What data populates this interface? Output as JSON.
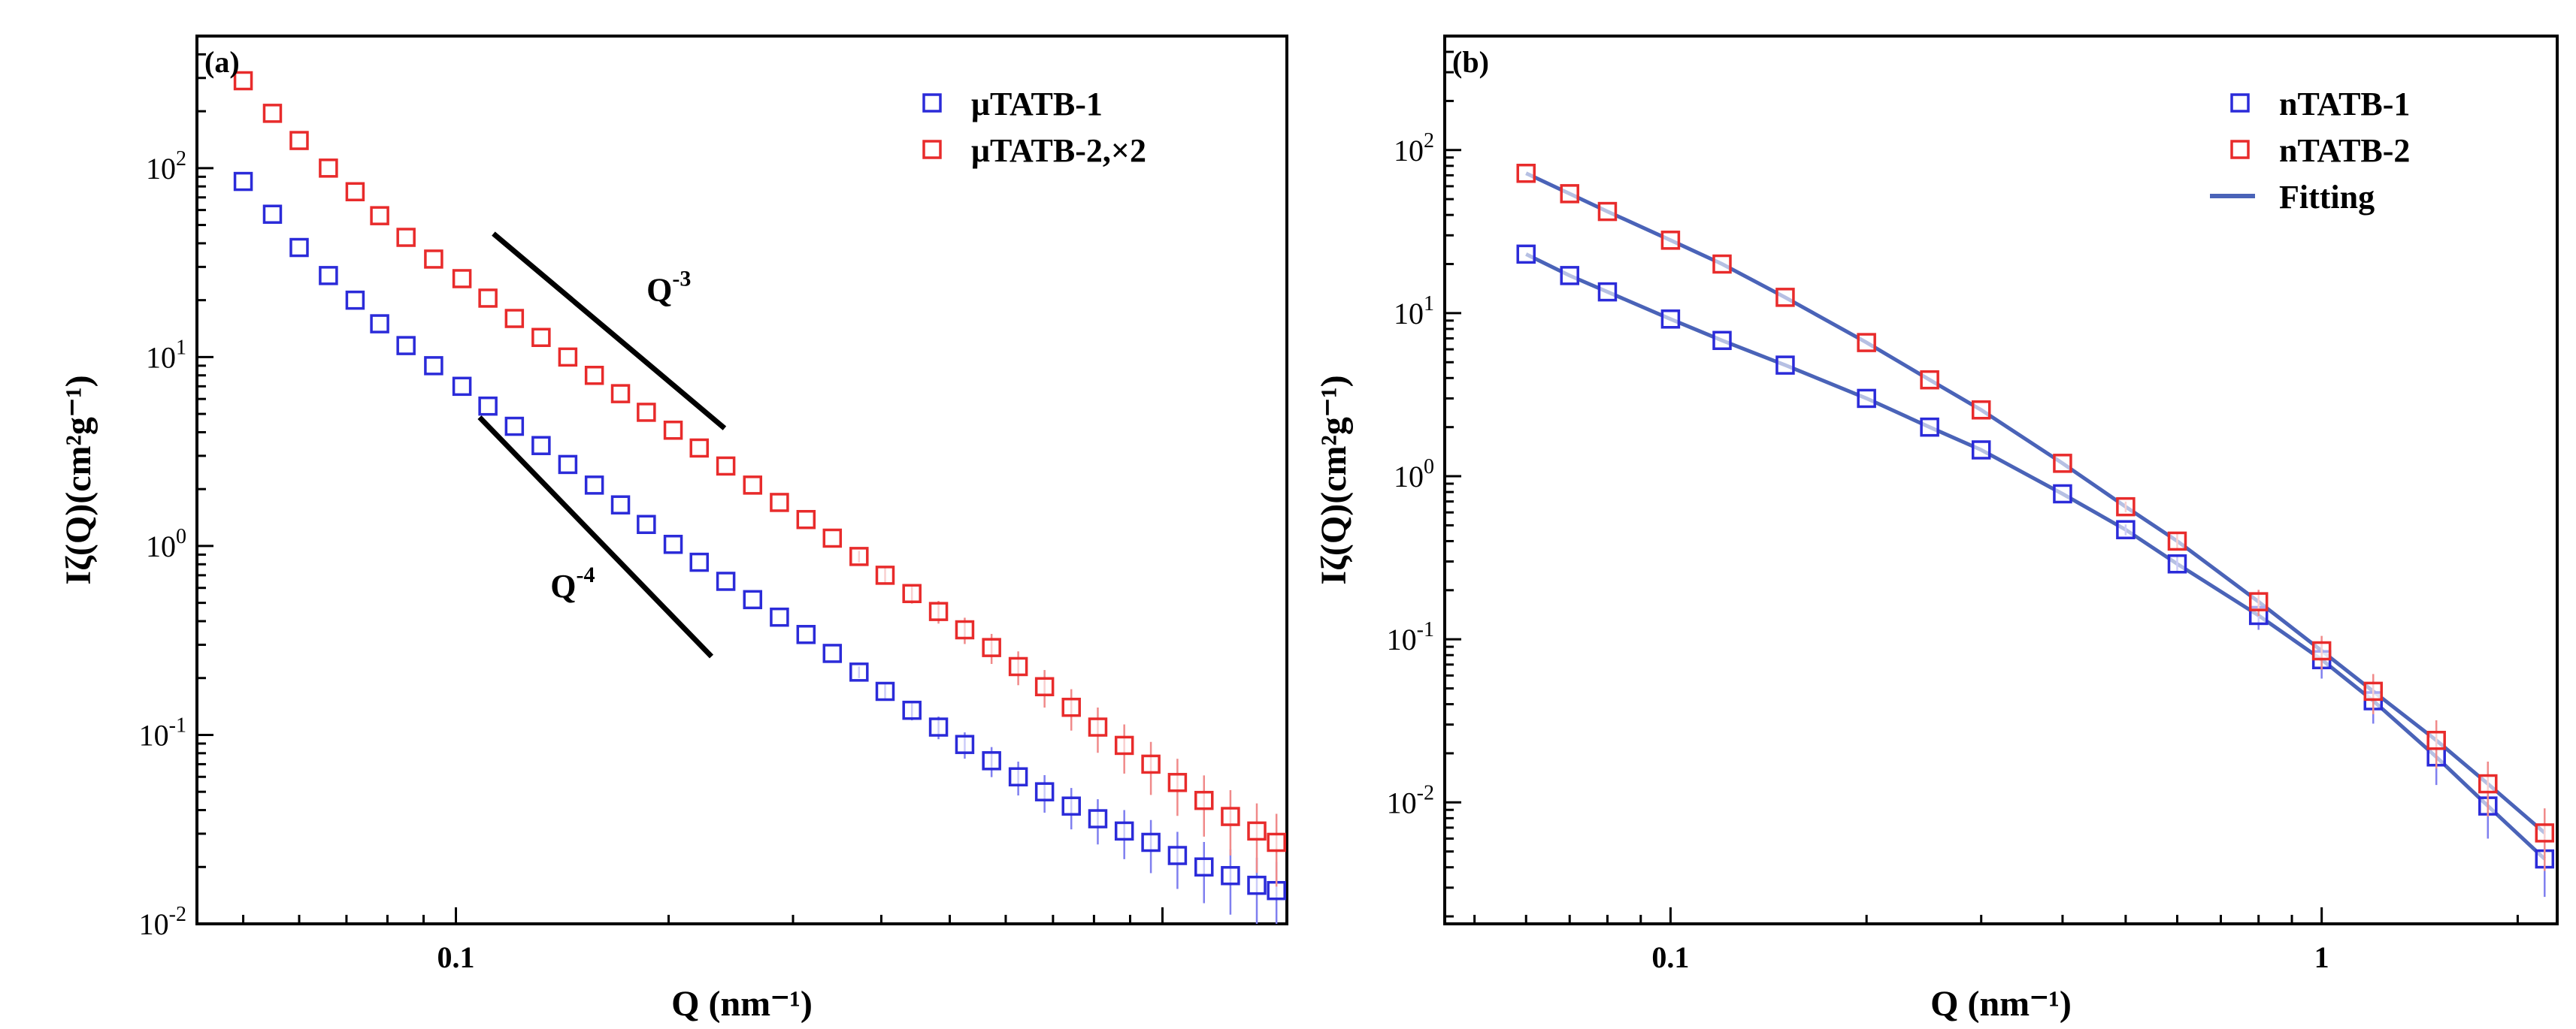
{
  "colors": {
    "blue": "#2b2bd9",
    "red": "#e82b2b",
    "fit": "#4a63b8",
    "errorBlue": "#7f7fef",
    "errorRed": "#f08a8a"
  },
  "chart_data": [
    {
      "type": "scatter",
      "panel_label": "(a)",
      "xscale": "log",
      "yscale": "log",
      "xlim": [
        0.043,
        1.5
      ],
      "ylim": [
        0.01,
        500
      ],
      "xlabel": "Q (nm⁻¹)",
      "ylabel": "Iζ(Q)(cm²g⁻¹)",
      "x_ticks": [
        {
          "value": 0.1,
          "label": "0.1"
        }
      ],
      "y_ticks": [
        {
          "value": 0.01,
          "base": "10",
          "exp": "-2"
        },
        {
          "value": 0.1,
          "base": "10",
          "exp": "-1"
        },
        {
          "value": 1,
          "base": "10",
          "exp": "0"
        },
        {
          "value": 10,
          "base": "10",
          "exp": "1"
        },
        {
          "value": 100,
          "base": "10",
          "exp": "2"
        }
      ],
      "legend_position": "top-right",
      "series": [
        {
          "name": "μTATB-1",
          "color": "blue",
          "x": [
            0.05,
            0.055,
            0.06,
            0.066,
            0.072,
            0.078,
            0.085,
            0.093,
            0.102,
            0.111,
            0.121,
            0.132,
            0.144,
            0.157,
            0.171,
            0.186,
            0.203,
            0.221,
            0.241,
            0.263,
            0.287,
            0.313,
            0.341,
            0.372,
            0.405,
            0.442,
            0.482,
            0.525,
            0.573,
            0.625,
            0.681,
            0.743,
            0.81,
            0.883,
            0.963,
            1.05,
            1.145,
            1.248,
            1.36,
            1.45
          ],
          "y": [
            85,
            57,
            38,
            27,
            20,
            15,
            11.5,
            9,
            7,
            5.5,
            4.3,
            3.4,
            2.7,
            2.1,
            1.65,
            1.3,
            1.02,
            0.82,
            0.65,
            0.52,
            0.42,
            0.34,
            0.27,
            0.215,
            0.17,
            0.135,
            0.11,
            0.089,
            0.073,
            0.06,
            0.05,
            0.042,
            0.036,
            0.031,
            0.027,
            0.023,
            0.02,
            0.018,
            0.016,
            0.015
          ]
        },
        {
          "name": "μTATB-2,×2",
          "color": "red",
          "x": [
            0.05,
            0.055,
            0.06,
            0.066,
            0.072,
            0.078,
            0.085,
            0.093,
            0.102,
            0.111,
            0.121,
            0.132,
            0.144,
            0.157,
            0.171,
            0.186,
            0.203,
            0.221,
            0.241,
            0.263,
            0.287,
            0.313,
            0.341,
            0.372,
            0.405,
            0.442,
            0.482,
            0.525,
            0.573,
            0.625,
            0.681,
            0.743,
            0.81,
            0.883,
            0.963,
            1.05,
            1.145,
            1.248,
            1.36,
            1.45
          ],
          "y": [
            290,
            195,
            140,
            100,
            75,
            56,
            43,
            33,
            26,
            20.5,
            16,
            12.7,
            10,
            8,
            6.4,
            5.1,
            4.1,
            3.3,
            2.65,
            2.1,
            1.7,
            1.38,
            1.1,
            0.88,
            0.7,
            0.56,
            0.45,
            0.36,
            0.29,
            0.23,
            0.18,
            0.14,
            0.11,
            0.088,
            0.07,
            0.056,
            0.045,
            0.037,
            0.031,
            0.027
          ]
        }
      ],
      "guide_lines": [
        {
          "label_base": "Q",
          "label_exp": "-3",
          "x": [
            0.113,
            0.24
          ],
          "y": [
            45,
            4.2
          ]
        },
        {
          "label_base": "Q",
          "label_exp": "-4",
          "x": [
            0.108,
            0.23
          ],
          "y": [
            4.8,
            0.26
          ]
        }
      ]
    },
    {
      "type": "scatter",
      "panel_label": "(b)",
      "xscale": "log",
      "yscale": "log",
      "xlim": [
        0.045,
        2.3
      ],
      "ylim": [
        0.0018,
        500
      ],
      "xlabel": "Q (nm⁻¹)",
      "ylabel": "Iζ(Q)(cm²g⁻¹)",
      "x_ticks": [
        {
          "value": 0.1,
          "label": "0.1"
        },
        {
          "value": 1,
          "label": "1"
        }
      ],
      "y_ticks": [
        {
          "value": 0.01,
          "base": "10",
          "exp": "-2"
        },
        {
          "value": 0.1,
          "base": "10",
          "exp": "-1"
        },
        {
          "value": 1,
          "base": "10",
          "exp": "0"
        },
        {
          "value": 10,
          "base": "10",
          "exp": "1"
        },
        {
          "value": 100,
          "base": "10",
          "exp": "2"
        }
      ],
      "legend_position": "top-right",
      "series": [
        {
          "name": "nTATB-1",
          "color": "blue",
          "x": [
            0.06,
            0.07,
            0.08,
            0.1,
            0.12,
            0.15,
            0.2,
            0.25,
            0.3,
            0.4,
            0.5,
            0.6,
            0.8,
            1.0,
            1.2,
            1.5,
            1.8,
            2.2
          ],
          "y": [
            23,
            17,
            13.5,
            9.2,
            6.8,
            4.8,
            3.0,
            2.0,
            1.45,
            0.78,
            0.47,
            0.29,
            0.14,
            0.075,
            0.042,
            0.019,
            0.0095,
            0.0045
          ]
        },
        {
          "name": "nTATB-2",
          "color": "red",
          "x": [
            0.06,
            0.07,
            0.08,
            0.1,
            0.12,
            0.15,
            0.2,
            0.25,
            0.3,
            0.4,
            0.5,
            0.6,
            0.8,
            1.0,
            1.2,
            1.5,
            1.8,
            2.2
          ],
          "y": [
            72,
            54,
            42,
            28,
            20,
            12.5,
            6.6,
            3.9,
            2.55,
            1.2,
            0.65,
            0.4,
            0.17,
            0.085,
            0.048,
            0.024,
            0.013,
            0.0065
          ]
        }
      ],
      "fit_label": "Fitting"
    }
  ]
}
